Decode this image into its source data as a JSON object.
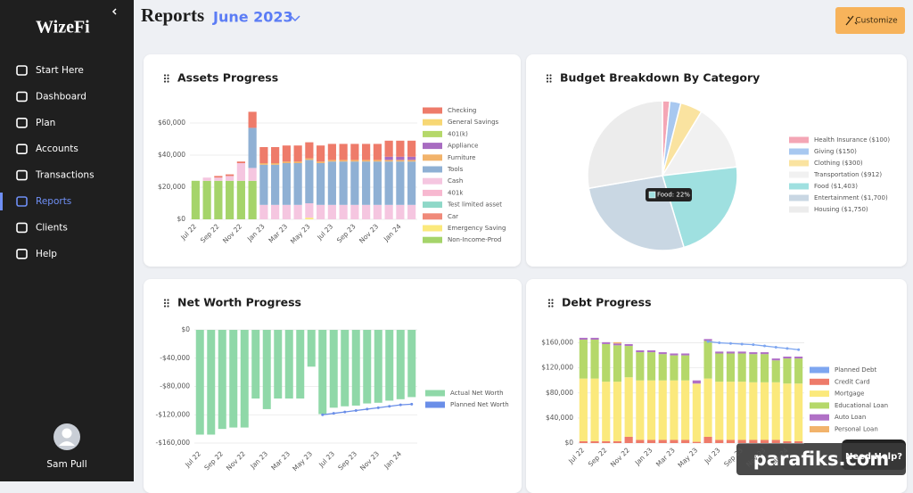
{
  "sidebar": {
    "logo": "WizeFi",
    "items": [
      "Start Here",
      "Dashboard",
      "Plan",
      "Accounts",
      "Transactions",
      "Reports",
      "Clients",
      "Help"
    ],
    "active": 5,
    "user": "Sam Pull"
  },
  "header": {
    "title": "Reports",
    "period": "June 2023",
    "button": "Customize"
  },
  "help_button": "Need Help?",
  "watermark": "parafiks.com",
  "chart_data": [
    {
      "type": "bar",
      "title": "Assets Progress",
      "stack": "reverse",
      "grid": true,
      "categories": [
        "Jul 22",
        null,
        "Sep 22",
        null,
        "Nov 22",
        null,
        "Jan 23",
        null,
        "Mar 23",
        null,
        "May 23",
        null,
        "Jul 23",
        null,
        "Sep 23",
        null,
        "Nov 23",
        null,
        "Jan 24",
        null
      ],
      "ylim": [
        0,
        70000
      ],
      "yticks": [
        {
          "value": 0,
          "label": "$0"
        },
        {
          "value": 20000,
          "label": "$20,000"
        },
        {
          "value": 40000,
          "label": "$40,000"
        },
        {
          "value": 60000,
          "label": "$60,000"
        }
      ],
      "series": [
        {
          "name": "Checking",
          "color": "#ee7b6a",
          "values": [
            0,
            0,
            1000,
            1000,
            1000,
            10000,
            10000,
            10000,
            10000,
            10000,
            10000,
            10000,
            10000,
            10000,
            10000,
            10000,
            10000,
            10000,
            10000,
            10000
          ]
        },
        {
          "name": "General Savings",
          "color": "#f7d774",
          "values": [
            0,
            0,
            0,
            0,
            0,
            0,
            0,
            0,
            0,
            0,
            0,
            0,
            0,
            0,
            0,
            0,
            0,
            0,
            0,
            0
          ]
        },
        {
          "name": "401(k)",
          "color": "#b5d86a",
          "values": [
            0,
            0,
            0,
            0,
            0,
            0,
            0,
            0,
            0,
            0,
            0,
            0,
            0,
            0,
            0,
            0,
            0,
            0,
            0,
            0
          ]
        },
        {
          "name": "Appliance",
          "color": "#a86cc1",
          "values": [
            0,
            0,
            0,
            0,
            0,
            0,
            0,
            0,
            0,
            0,
            0,
            0,
            0,
            0,
            0,
            0,
            0,
            2000,
            2000,
            2000
          ]
        },
        {
          "name": "Furniture",
          "color": "#f2b36b",
          "values": [
            0,
            0,
            0,
            0,
            0,
            0,
            1000,
            1000,
            1000,
            1000,
            1000,
            1000,
            1000,
            1000,
            1000,
            1000,
            1000,
            1000,
            1000,
            1000
          ]
        },
        {
          "name": "Tools",
          "color": "#8fb0d4",
          "values": [
            0,
            0,
            0,
            0,
            0,
            25000,
            25000,
            25000,
            26000,
            26000,
            27000,
            26000,
            27000,
            27000,
            27000,
            27000,
            27000,
            27000,
            27000,
            27000
          ]
        },
        {
          "name": "Cash",
          "color": "#f5c6e0",
          "values": [
            0,
            2000,
            2000,
            3000,
            11000,
            8000,
            9000,
            9000,
            9000,
            9000,
            9000,
            9000,
            9000,
            9000,
            9000,
            9000,
            9000,
            9000,
            9000,
            9000
          ]
        },
        {
          "name": "401k",
          "color": "#f7b8d0",
          "values": [
            0,
            0,
            0,
            0,
            0,
            0,
            0,
            0,
            0,
            0,
            0,
            0,
            0,
            0,
            0,
            0,
            0,
            0,
            0,
            0
          ]
        },
        {
          "name": "Test limited asset",
          "color": "#8fd8c8",
          "values": [
            0,
            0,
            0,
            0,
            0,
            0,
            0,
            0,
            0,
            0,
            0,
            0,
            0,
            0,
            0,
            0,
            0,
            0,
            0,
            0
          ]
        },
        {
          "name": "Car",
          "color": "#f08a7a",
          "values": [
            0,
            0,
            0,
            0,
            0,
            0,
            0,
            0,
            0,
            0,
            0,
            0,
            0,
            0,
            0,
            0,
            0,
            0,
            0,
            0
          ]
        },
        {
          "name": "Emergency Saving",
          "color": "#fbe97c",
          "values": [
            0,
            0,
            0,
            0,
            0,
            0,
            0,
            0,
            0,
            0,
            1000,
            0,
            0,
            0,
            0,
            0,
            0,
            0,
            0,
            0
          ]
        },
        {
          "name": "Non-Income-Prod",
          "color": "#a5d46a",
          "values": [
            24000,
            24000,
            24000,
            24000,
            24000,
            24000,
            0,
            0,
            0,
            0,
            0,
            0,
            0,
            0,
            0,
            0,
            0,
            0,
            0,
            0
          ]
        }
      ]
    },
    {
      "type": "pie",
      "title": "Budget Breakdown By Category",
      "annotation": "Food: 22%",
      "labels": [
        "Health Insurance ($100)",
        "Giving ($150)",
        "Clothing ($300)",
        "Transportation ($912)",
        "Food ($1,403)",
        "Entertainment ($1,700)",
        "Housing ($1,750)"
      ],
      "values": [
        100,
        150,
        300,
        912,
        1403,
        1700,
        1750
      ],
      "colors": [
        "#f4a6b5",
        "#a8c8f0",
        "#fae3a0",
        "#f1f1f1",
        "#9fe0e0",
        "#c9d7e3",
        "#ececec"
      ]
    },
    {
      "type": "bar",
      "title": "Net Worth Progress",
      "stack": "forward",
      "grid": true,
      "categories": [
        "Jul 22",
        null,
        "Sep 22",
        null,
        "Nov 22",
        null,
        "Jan 23",
        null,
        "Mar 23",
        null,
        "May 23",
        null,
        "Jul 23",
        null,
        "Sep 23",
        null,
        "Nov 23",
        null,
        "Jan 24",
        null
      ],
      "ylim": [
        -165000,
        0
      ],
      "yticks": [
        {
          "value": 0,
          "label": "$0"
        },
        {
          "value": -40000,
          "label": "-$40,000"
        },
        {
          "value": -80000,
          "label": "-$80,000"
        },
        {
          "value": -120000,
          "label": "-$120,000"
        },
        {
          "value": -160000,
          "label": "-$160,000"
        }
      ],
      "series": [
        {
          "name": "Actual Net Worth",
          "color": "#8fd8a8",
          "values": [
            -148000,
            -148000,
            -140000,
            -138000,
            -138000,
            -97000,
            -112000,
            -97000,
            -97000,
            -97000,
            -52000,
            -119000,
            -110000,
            -108000,
            -107000,
            -104000,
            -103000,
            -100000,
            -98000,
            -95000
          ]
        },
        {
          "name": "Planned Net Worth",
          "color": "#6a8ee8",
          "type": "line",
          "values": [
            null,
            null,
            null,
            null,
            null,
            null,
            null,
            null,
            null,
            null,
            null,
            -120000,
            -118000,
            -116000,
            -114000,
            -112000,
            -110000,
            -108000,
            -106000,
            -105000
          ]
        }
      ]
    },
    {
      "type": "bar",
      "title": "Debt Progress",
      "stack": "forward",
      "grid": true,
      "categories": [
        "Jul 22",
        null,
        "Sep 22",
        null,
        "Nov 22",
        null,
        "Jan 23",
        null,
        "Mar 23",
        null,
        "May 23",
        null,
        "Jul 23",
        null,
        "Sep 23",
        null,
        "Nov 23",
        null,
        "Jan 24",
        null
      ],
      "ylim": [
        0,
        175000
      ],
      "yticks": [
        {
          "value": 0,
          "label": "$0"
        },
        {
          "value": 40000,
          "label": "$40,000"
        },
        {
          "value": 80000,
          "label": "$80,000"
        },
        {
          "value": 120000,
          "label": "$120,000"
        },
        {
          "value": 160000,
          "label": "$160,000"
        }
      ],
      "series": [
        {
          "name": "Planned Debt",
          "color": "#7ea6f0",
          "type": "line",
          "values": [
            null,
            null,
            null,
            null,
            null,
            null,
            null,
            null,
            null,
            null,
            null,
            162000,
            160000,
            159000,
            158000,
            157000,
            155000,
            153000,
            151000,
            149000
          ]
        },
        {
          "name": "Credit Card",
          "color": "#ee7b6a",
          "values": [
            3000,
            3000,
            3000,
            3000,
            10000,
            5000,
            5000,
            5000,
            5000,
            5000,
            2000,
            10000,
            5000,
            5000,
            5000,
            5000,
            5000,
            5000,
            3000,
            3000
          ]
        },
        {
          "name": "Mortgage",
          "color": "#fbe97c",
          "values": [
            100000,
            100000,
            95000,
            95000,
            95000,
            95000,
            95000,
            95000,
            95000,
            95000,
            93000,
            93000,
            93000,
            93000,
            93000,
            92000,
            92000,
            92000,
            92000,
            92000
          ]
        },
        {
          "name": "Educational Loan",
          "color": "#b5d86a",
          "values": [
            62000,
            62000,
            60000,
            58000,
            50000,
            45000,
            45000,
            42000,
            40000,
            40000,
            0,
            60000,
            45000,
            45000,
            45000,
            45000,
            45000,
            35000,
            40000,
            40000
          ]
        },
        {
          "name": "Auto Loan",
          "color": "#b070c6",
          "values": [
            3000,
            3000,
            3000,
            3000,
            3000,
            3000,
            3000,
            3000,
            3000,
            3000,
            5000,
            3000,
            3000,
            3000,
            3000,
            3000,
            3000,
            3000,
            3000,
            3000
          ]
        },
        {
          "name": "Personal Loan",
          "color": "#f2b36b",
          "values": [
            0,
            0,
            0,
            2000,
            0,
            0,
            0,
            0,
            0,
            0,
            0,
            0,
            0,
            0,
            0,
            0,
            0,
            0,
            0,
            0
          ]
        }
      ]
    }
  ]
}
